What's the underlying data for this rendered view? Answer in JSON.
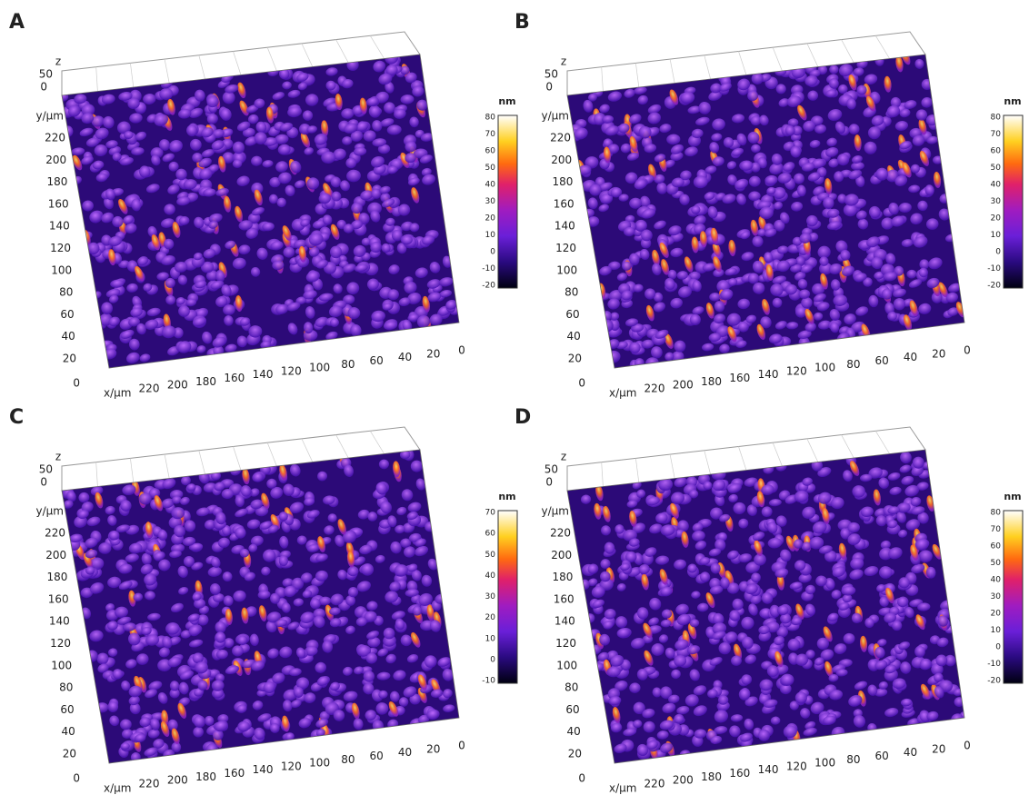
{
  "panels": [
    {
      "label": "A",
      "z_axis": {
        "label": "z",
        "ticks": [
          "50",
          "0"
        ]
      },
      "y_axis": {
        "label": "y/µm",
        "ticks": [
          "220",
          "200",
          "180",
          "160",
          "140",
          "120",
          "100",
          "80",
          "60",
          "40",
          "20"
        ]
      },
      "origin": "0",
      "x_axis": {
        "label": "x/µm",
        "ticks": [
          "220",
          "200",
          "180",
          "160",
          "140",
          "120",
          "100",
          "80",
          "60",
          "40",
          "20",
          "0"
        ]
      },
      "colorbar": {
        "title": "nm",
        "ticks": [
          80,
          70,
          60,
          50,
          40,
          30,
          20,
          10,
          0,
          -10,
          -20
        ]
      }
    },
    {
      "label": "B",
      "z_axis": {
        "label": "z",
        "ticks": [
          "50",
          "0"
        ]
      },
      "y_axis": {
        "label": "y/µm",
        "ticks": [
          "220",
          "200",
          "180",
          "160",
          "140",
          "120",
          "100",
          "80",
          "60",
          "40",
          "20"
        ]
      },
      "origin": "0",
      "x_axis": {
        "label": "x/µm",
        "ticks": [
          "220",
          "200",
          "180",
          "160",
          "140",
          "120",
          "100",
          "80",
          "60",
          "40",
          "20",
          "0"
        ]
      },
      "colorbar": {
        "title": "nm",
        "ticks": [
          80,
          70,
          60,
          50,
          40,
          30,
          20,
          10,
          0,
          -10,
          -20
        ]
      }
    },
    {
      "label": "C",
      "z_axis": {
        "label": "z",
        "ticks": [
          "50",
          "0"
        ]
      },
      "y_axis": {
        "label": "y/µm",
        "ticks": [
          "220",
          "200",
          "180",
          "160",
          "140",
          "120",
          "100",
          "80",
          "60",
          "40",
          "20"
        ]
      },
      "origin": "0",
      "x_axis": {
        "label": "x/µm",
        "ticks": [
          "220",
          "200",
          "180",
          "160",
          "140",
          "120",
          "100",
          "80",
          "60",
          "40",
          "20",
          "0"
        ]
      },
      "colorbar": {
        "title": "nm",
        "ticks": [
          70,
          60,
          50,
          40,
          30,
          20,
          10,
          0,
          -10
        ]
      }
    },
    {
      "label": "D",
      "z_axis": {
        "label": "z",
        "ticks": [
          "50",
          "0"
        ]
      },
      "y_axis": {
        "label": "y/µm",
        "ticks": [
          "220",
          "200",
          "180",
          "160",
          "140",
          "120",
          "100",
          "80",
          "60",
          "40",
          "20"
        ]
      },
      "origin": "0",
      "x_axis": {
        "label": "x/µm",
        "ticks": [
          "220",
          "200",
          "180",
          "160",
          "140",
          "120",
          "100",
          "80",
          "60",
          "40",
          "20",
          "0"
        ]
      },
      "colorbar": {
        "title": "nm",
        "ticks": [
          80,
          70,
          60,
          50,
          40,
          30,
          20,
          10,
          0,
          -10,
          -20
        ]
      }
    }
  ]
}
